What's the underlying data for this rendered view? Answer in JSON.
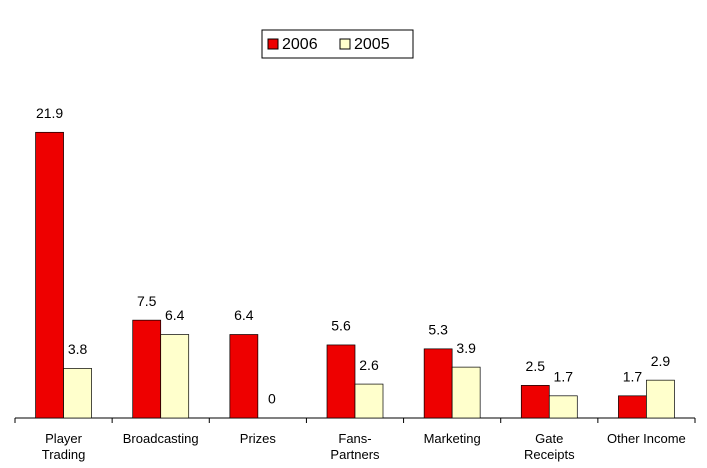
{
  "chart_data": {
    "type": "bar",
    "categories": [
      "Player\nTrading",
      "Broadcasting",
      "Prizes",
      "Fans-\nPartners",
      "Marketing",
      "Gate\nReceipts",
      "Other Income"
    ],
    "series": [
      {
        "name": "2006",
        "color": "#ee0000",
        "values": [
          21.9,
          7.5,
          6.4,
          5.6,
          5.3,
          2.5,
          1.7
        ]
      },
      {
        "name": "2005",
        "color": "#ffffcc",
        "values": [
          3.8,
          6.4,
          0,
          2.6,
          3.9,
          1.7,
          2.9
        ]
      }
    ],
    "ylim": [
      0,
      22
    ],
    "legend": "top"
  }
}
